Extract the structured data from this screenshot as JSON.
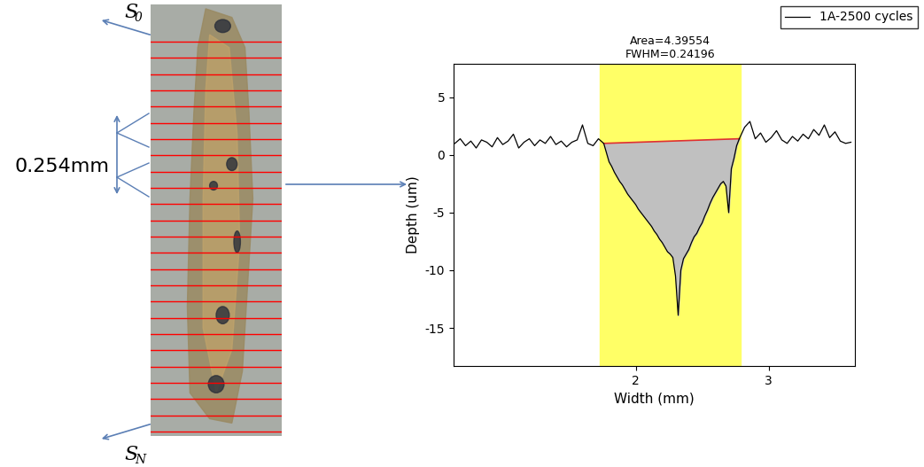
{
  "chart_data": {
    "type": "line",
    "x": [
      0.64,
      0.68,
      0.72,
      0.76,
      0.8,
      0.84,
      0.88,
      0.92,
      0.96,
      1.0,
      1.04,
      1.08,
      1.12,
      1.16,
      1.2,
      1.24,
      1.28,
      1.32,
      1.36,
      1.4,
      1.44,
      1.48,
      1.52,
      1.56,
      1.6,
      1.64,
      1.68,
      1.72,
      1.76,
      1.78,
      1.8,
      1.82,
      1.84,
      1.86,
      1.88,
      1.9,
      1.92,
      1.94,
      1.96,
      1.98,
      2.0,
      2.02,
      2.04,
      2.06,
      2.08,
      2.1,
      2.12,
      2.14,
      2.16,
      2.18,
      2.2,
      2.22,
      2.24,
      2.26,
      2.28,
      2.3,
      2.32,
      2.34,
      2.36,
      2.38,
      2.4,
      2.42,
      2.44,
      2.46,
      2.48,
      2.5,
      2.52,
      2.54,
      2.56,
      2.58,
      2.6,
      2.62,
      2.64,
      2.66,
      2.68,
      2.7,
      2.72,
      2.74,
      2.76,
      2.78,
      2.82,
      2.86,
      2.9,
      2.94,
      2.98,
      3.02,
      3.06,
      3.1,
      3.14,
      3.18,
      3.22,
      3.26,
      3.3,
      3.34,
      3.38,
      3.42,
      3.46,
      3.5,
      3.54,
      3.58,
      3.62
    ],
    "series": [
      {
        "name": "1A-2500 cycles",
        "color": "#000000",
        "values": [
          1.0,
          1.4,
          0.8,
          1.2,
          0.6,
          1.3,
          1.1,
          0.7,
          1.5,
          0.9,
          1.2,
          1.8,
          0.6,
          1.1,
          1.4,
          0.8,
          1.3,
          1.0,
          1.6,
          0.9,
          1.2,
          0.7,
          1.1,
          1.3,
          2.6,
          1.0,
          0.8,
          1.4,
          1.0,
          0.2,
          -0.6,
          -1.0,
          -1.5,
          -1.9,
          -2.3,
          -2.6,
          -3.0,
          -3.4,
          -3.7,
          -4.0,
          -4.3,
          -4.7,
          -5.0,
          -5.3,
          -5.6,
          -5.9,
          -6.2,
          -6.6,
          -6.9,
          -7.3,
          -7.6,
          -8.0,
          -8.4,
          -8.6,
          -8.9,
          -10.5,
          -13.9,
          -10.0,
          -9.0,
          -8.6,
          -8.2,
          -7.6,
          -7.1,
          -6.8,
          -6.3,
          -5.9,
          -5.3,
          -4.8,
          -4.2,
          -3.7,
          -3.3,
          -2.9,
          -2.5,
          -2.3,
          -2.7,
          -5.0,
          -1.2,
          -0.3,
          0.8,
          1.4,
          2.4,
          2.9,
          1.4,
          1.9,
          1.1,
          1.5,
          2.1,
          1.3,
          1.0,
          1.6,
          1.2,
          1.8,
          1.4,
          2.2,
          1.7,
          2.6,
          1.5,
          2.0,
          1.2,
          1.0,
          1.1
        ]
      }
    ],
    "xlabel": "Width (mm)",
    "ylabel": "Depth (um)",
    "xlim": [
      0.63,
      3.65
    ],
    "xticks": [
      2,
      3
    ],
    "ylim": [
      -18.3,
      7.9
    ],
    "yticks": [
      -15,
      -10,
      -5,
      0,
      5
    ],
    "legend": "upper right",
    "highlight": {
      "x": [
        1.73,
        2.79
      ],
      "color": "#ffff66"
    },
    "baseline": {
      "x": [
        1.76,
        2.78
      ],
      "y": [
        1.0,
        1.4
      ],
      "color": "#e03030"
    },
    "fill_color": "#c0c0c0",
    "annotations": [
      "Area=4.39554",
      "FWHM=0.24196"
    ]
  },
  "diagram": {
    "start_label": {
      "text": "S",
      "subscript": "0"
    },
    "end_label": {
      "text": "S",
      "subscript": "N"
    },
    "spacing_label": "0.254mm",
    "scan_line_count": 25,
    "scan_line_color": "#ff0000"
  }
}
